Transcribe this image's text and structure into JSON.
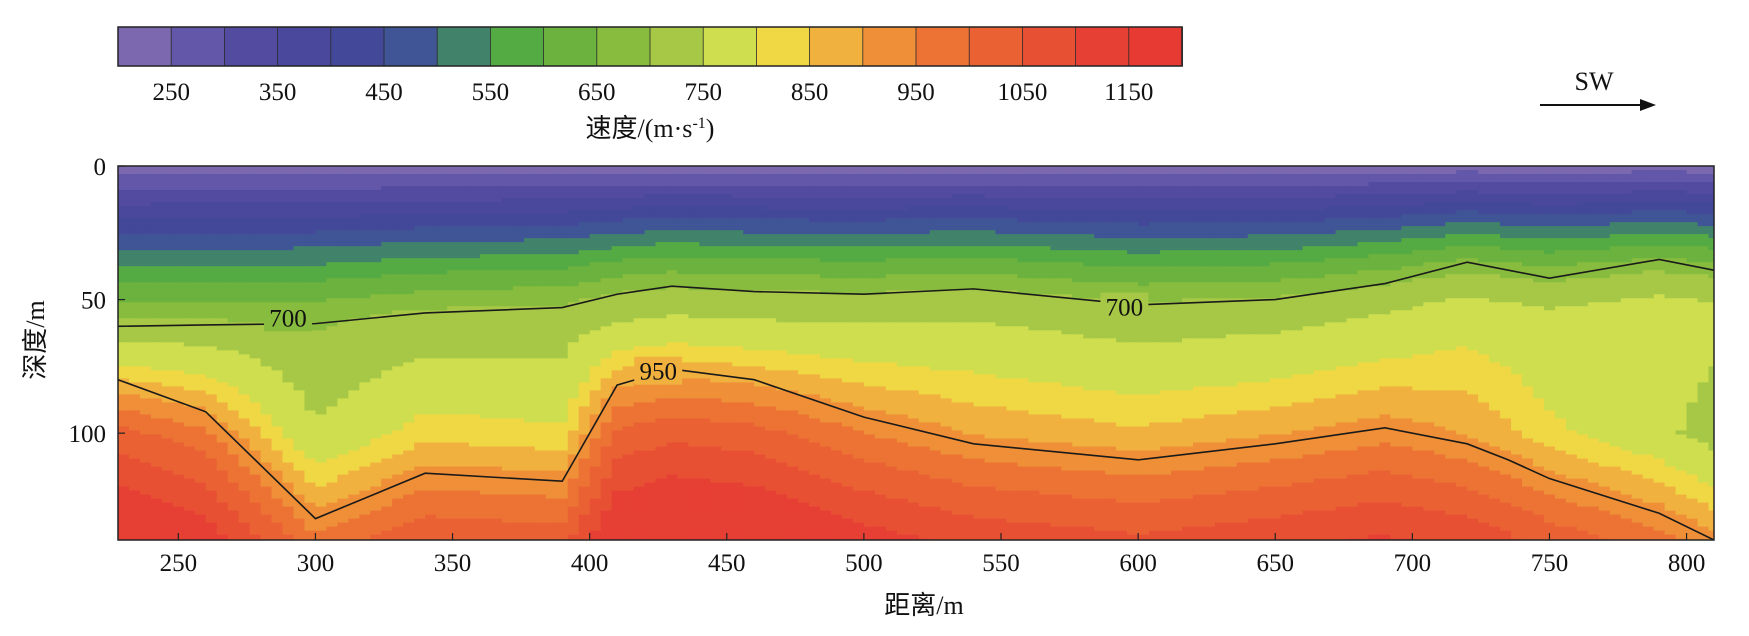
{
  "chart_data": {
    "type": "heatmap",
    "title": "",
    "xlabel": "距离/m",
    "ylabel": "深度/m",
    "xlim": [
      228,
      810
    ],
    "ylim": [
      0,
      140
    ],
    "x_ticks": [
      250,
      300,
      350,
      400,
      450,
      500,
      550,
      600,
      650,
      700,
      750,
      800
    ],
    "y_ticks": [
      0,
      50,
      100
    ],
    "direction_label": "SW",
    "colorbar": {
      "label_main": "速度/(m·s",
      "label_sup": "-1",
      "label_close": ")",
      "boundaries": [
        200,
        250,
        300,
        350,
        400,
        450,
        500,
        550,
        600,
        650,
        700,
        750,
        800,
        850,
        900,
        950,
        1000,
        1050,
        1100,
        1150,
        1200
      ],
      "tick_labels": [
        250,
        350,
        450,
        550,
        650,
        750,
        850,
        950,
        1050,
        1150
      ],
      "colors": [
        "#7b68ae",
        "#6257a8",
        "#534ba0",
        "#4a489c",
        "#434899",
        "#3f5596",
        "#41826a",
        "#54ab44",
        "#6bb23e",
        "#88bc3e",
        "#a6c846",
        "#cede4e",
        "#f0d845",
        "#f1b13f",
        "#ef8f37",
        "#ec7334",
        "#ea6234",
        "#e85034",
        "#e63f34",
        "#e63a33"
      ]
    },
    "velocity_profile": {
      "x": [
        228,
        260,
        300,
        340,
        390,
        410,
        430,
        460,
        500,
        540,
        600,
        650,
        690,
        720,
        735,
        750,
        790,
        810
      ],
      "depth_ref": [
        0,
        25,
        40,
        55,
        80,
        100,
        120,
        140
      ],
      "velocity_ref": [
        220,
        470,
        600,
        710,
        800,
        920,
        1020,
        1100
      ],
      "iso700_depth": [
        60,
        59.5,
        59,
        55,
        53,
        48,
        45,
        47,
        48,
        46,
        52,
        50,
        44,
        36,
        39,
        42,
        35,
        39
      ],
      "iso950_depth": [
        80,
        92,
        132,
        115,
        118,
        82,
        76,
        80,
        94,
        104,
        110,
        104,
        98,
        104,
        110,
        117,
        130,
        140
      ]
    },
    "contour_labels": [
      {
        "text": "700",
        "x": 290,
        "depth": 57
      },
      {
        "text": "700",
        "x": 595,
        "depth": 53
      },
      {
        "text": "950",
        "x": 425,
        "depth": 77
      }
    ]
  }
}
